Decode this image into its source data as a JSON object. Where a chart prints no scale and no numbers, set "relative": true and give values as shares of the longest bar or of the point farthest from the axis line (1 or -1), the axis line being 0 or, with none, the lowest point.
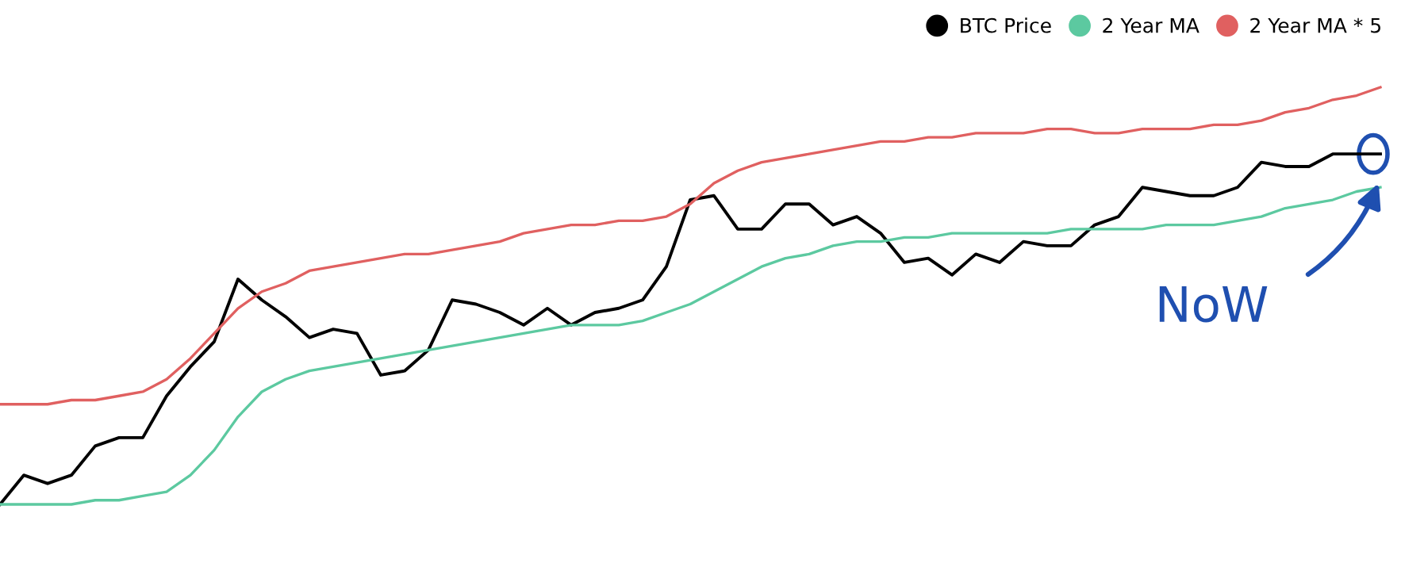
{
  "chart_data": {
    "type": "line",
    "relative": true,
    "legend": "top right",
    "marker": "none",
    "line_style": "solid",
    "categories": [
      null,
      null,
      null,
      null,
      null,
      null,
      null,
      null,
      null,
      null,
      null,
      null,
      null,
      null,
      null,
      null,
      null,
      null,
      null,
      null,
      null,
      null,
      null,
      null,
      null,
      null,
      null,
      null,
      null,
      null,
      null,
      null,
      null,
      null,
      null,
      null,
      null,
      null,
      null,
      null,
      null,
      null,
      null,
      null,
      null,
      null,
      null,
      null,
      null,
      null,
      null,
      null,
      null,
      null,
      null,
      null,
      null,
      null,
      null
    ],
    "series": [
      {
        "name": "BTC Price",
        "color": "#000000",
        "values": [
          0.0,
          0.07,
          0.05,
          0.07,
          0.14,
          0.16,
          0.16,
          0.26,
          0.33,
          0.39,
          0.54,
          0.49,
          0.45,
          0.4,
          0.42,
          0.41,
          0.31,
          0.32,
          0.37,
          0.49,
          0.48,
          0.46,
          0.43,
          0.47,
          0.43,
          0.46,
          0.47,
          0.49,
          0.57,
          0.73,
          0.74,
          0.66,
          0.66,
          0.72,
          0.72,
          0.67,
          0.69,
          0.65,
          0.58,
          0.59,
          0.55,
          0.6,
          0.58,
          0.63,
          0.62,
          0.62,
          0.67,
          0.69,
          0.76,
          0.75,
          0.74,
          0.74,
          0.76,
          0.82,
          0.81,
          0.81,
          0.84,
          0.84,
          0.84
        ]
      },
      {
        "name": "2 Year MA",
        "color": "#5cc9a0",
        "values": [
          0,
          0,
          0,
          0,
          0.01,
          0.01,
          0.02,
          0.03,
          0.07,
          0.13,
          0.21,
          0.27,
          0.3,
          0.32,
          0.33,
          0.34,
          0.35,
          0.36,
          0.37,
          0.38,
          0.39,
          0.4,
          0.41,
          0.42,
          0.43,
          0.43,
          0.43,
          0.44,
          0.46,
          0.48,
          0.51,
          0.54,
          0.57,
          0.59,
          0.6,
          0.62,
          0.63,
          0.63,
          0.64,
          0.64,
          0.65,
          0.65,
          0.65,
          0.65,
          0.65,
          0.66,
          0.66,
          0.66,
          0.66,
          0.67,
          0.67,
          0.67,
          0.68,
          0.69,
          0.71,
          0.72,
          0.73,
          0.75,
          0.76
        ]
      },
      {
        "name": "2 Year MA * 5",
        "color": "#e06060",
        "values": [
          0.24,
          0.24,
          0.24,
          0.25,
          0.25,
          0.26,
          0.27,
          0.3,
          0.35,
          0.41,
          0.47,
          0.51,
          0.53,
          0.56,
          0.57,
          0.58,
          0.59,
          0.6,
          0.6,
          0.61,
          0.62,
          0.63,
          0.65,
          0.66,
          0.67,
          0.67,
          0.68,
          0.68,
          0.69,
          0.72,
          0.77,
          0.8,
          0.82,
          0.83,
          0.84,
          0.85,
          0.86,
          0.87,
          0.87,
          0.88,
          0.88,
          0.89,
          0.89,
          0.89,
          0.9,
          0.9,
          0.89,
          0.89,
          0.9,
          0.9,
          0.9,
          0.91,
          0.91,
          0.92,
          0.94,
          0.95,
          0.97,
          0.98,
          1.0
        ]
      }
    ],
    "annotations": [
      "NoW"
    ]
  }
}
